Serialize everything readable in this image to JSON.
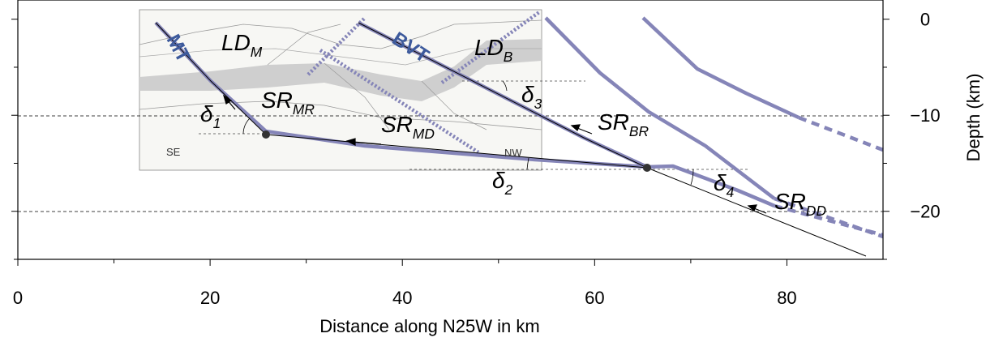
{
  "axes": {
    "x_label": "Distance along N25W in km",
    "y_label": "Depth (km)",
    "xlim": [
      0,
      90
    ],
    "xticks": [
      0,
      20,
      40,
      60,
      80
    ],
    "ylim": [
      -25,
      2
    ],
    "yticks": [
      0,
      {
        "value": -10,
        "label": "−10"
      },
      {
        "value": -20,
        "label": "−20"
      }
    ]
  },
  "annotations": [
    {
      "text": "MT"
    },
    {
      "text": "BVT"
    },
    {
      "text": "LD",
      "sub": "M"
    },
    {
      "text": "LD",
      "sub": "B"
    },
    {
      "text": "δ",
      "sub": "1"
    },
    {
      "text": "δ",
      "sub": "2"
    },
    {
      "text": "δ",
      "sub": "3"
    },
    {
      "text": "δ",
      "sub": "4"
    },
    {
      "text": "SR",
      "sub": "MR"
    },
    {
      "text": "SR",
      "sub": "MD"
    },
    {
      "text": "SR",
      "sub": "BR"
    },
    {
      "text": "SR",
      "sub": "DD"
    },
    {
      "text": "SE"
    },
    {
      "text": "NW"
    }
  ]
}
